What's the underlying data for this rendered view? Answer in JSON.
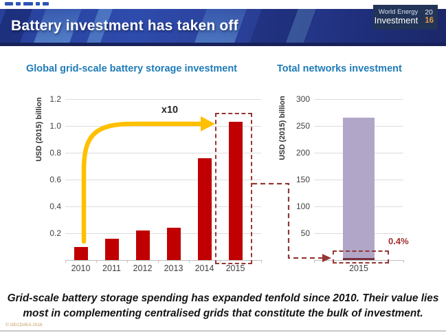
{
  "page": {
    "header": {
      "title": "Battery investment has taken off",
      "logo": {
        "line1": "World Energy",
        "line2": "Investment",
        "year_top": "20",
        "year_bottom": "16"
      }
    },
    "caption_line1": "Grid-scale battery storage spending has expanded tenfold since 2010. Their value lies",
    "caption_line2": "most in complementing centralised grids that constitute the bulk of investment.",
    "copyright": "© OECD/IEA 2016"
  },
  "colors": {
    "title_blue": "#1E7BB8",
    "bar_red": "#C00000",
    "arrow_yellow": "#FFC000",
    "highlight_maroon": "#943634",
    "networks_lavender": "#B1A6C8",
    "battery_segment_maroon": "#7A3142"
  },
  "chart_data": [
    {
      "type": "bar",
      "title": "Global grid-scale battery storage investment",
      "ylabel": "USD (2015) billion",
      "xlabel": "",
      "categories": [
        "2010",
        "2011",
        "2012",
        "2013",
        "2014",
        "2015"
      ],
      "values": [
        0.1,
        0.16,
        0.22,
        0.24,
        0.76,
        1.03
      ],
      "ylim": [
        0,
        1.2
      ],
      "yticks": [
        0.2,
        0.4,
        0.6,
        0.8,
        1.0,
        1.2
      ],
      "grid": true,
      "legend": "none",
      "bar_color": "#C00000",
      "annotations": {
        "arrow_label": "x10",
        "highlighted_category": "2015"
      }
    },
    {
      "type": "bar",
      "title": "Total networks investment",
      "ylabel": "USD (2015) billion",
      "xlabel": "",
      "categories": [
        "2015"
      ],
      "series": [
        {
          "name": "battery-storage-share",
          "values": [
            1.0
          ],
          "color": "#7A3142"
        },
        {
          "name": "networks-investment",
          "values": [
            261
          ],
          "color": "#B1A6C8"
        }
      ],
      "ylim": [
        0,
        300
      ],
      "yticks": [
        50,
        100,
        150,
        200,
        250,
        300
      ],
      "grid": true,
      "legend": "none",
      "annotations": {
        "share_label": "0.4%",
        "highlighted_region": "bottom of 2015 bar"
      }
    }
  ]
}
